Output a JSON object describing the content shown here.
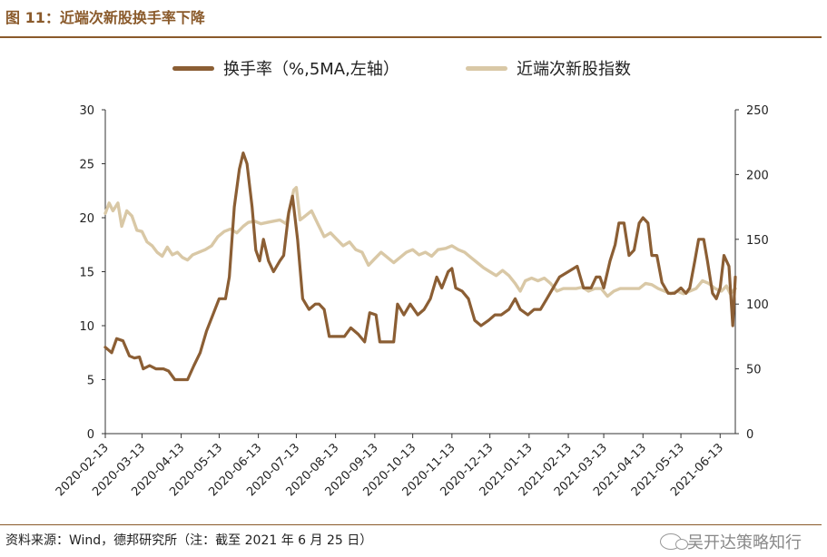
{
  "header": {
    "title": "图 11：近端次新股换手率下降"
  },
  "colors": {
    "accent": "#8a5a2b",
    "turnover": "#8b5e34",
    "index": "#d9c8a6"
  },
  "footer": {
    "source": "资料来源：Wind，德邦研究所（注：截至 2021 年 6 月 25 日）",
    "watermark": "吴开达策略知行",
    "watermark_icon": "wechat-icon"
  },
  "chart_data": {
    "type": "line",
    "title": "",
    "xlabel": "",
    "x_ticks": [
      "2020-02-13",
      "2020-03-13",
      "2020-04-13",
      "2020-05-13",
      "2020-06-13",
      "2020-07-13",
      "2020-08-13",
      "2020-09-13",
      "2020-10-13",
      "2020-11-13",
      "2020-12-13",
      "2021-01-13",
      "2021-02-13",
      "2021-03-13",
      "2021-04-13",
      "2021-05-13",
      "2021-06-13"
    ],
    "x_range": [
      "2020-02-13",
      "2021-06-25"
    ],
    "y_left": {
      "lim": [
        0,
        30
      ],
      "ticks": [
        0,
        5,
        10,
        15,
        20,
        25,
        30
      ]
    },
    "y_right": {
      "lim": [
        0,
        250
      ],
      "ticks": [
        0,
        50,
        100,
        150,
        200,
        250
      ]
    },
    "legend_position": "top-center",
    "grid": false,
    "series": [
      {
        "name": "换手率（%,5MA,左轴）",
        "axis": "left",
        "color": "#8b5e34",
        "points": [
          [
            "2020-02-13",
            8.0
          ],
          [
            "2020-02-18",
            7.5
          ],
          [
            "2020-02-22",
            8.8
          ],
          [
            "2020-02-27",
            8.6
          ],
          [
            "2020-03-03",
            7.2
          ],
          [
            "2020-03-07",
            7.0
          ],
          [
            "2020-03-11",
            7.1
          ],
          [
            "2020-03-14",
            6.0
          ],
          [
            "2020-03-19",
            6.3
          ],
          [
            "2020-03-24",
            6.0
          ],
          [
            "2020-03-30",
            6.0
          ],
          [
            "2020-04-03",
            5.8
          ],
          [
            "2020-04-08",
            5.0
          ],
          [
            "2020-04-13",
            5.0
          ],
          [
            "2020-04-18",
            5.0
          ],
          [
            "2020-04-23",
            6.3
          ],
          [
            "2020-04-28",
            7.5
          ],
          [
            "2020-05-03",
            9.5
          ],
          [
            "2020-05-08",
            11.0
          ],
          [
            "2020-05-13",
            12.5
          ],
          [
            "2020-05-18",
            12.5
          ],
          [
            "2020-05-21",
            14.5
          ],
          [
            "2020-05-25",
            21.0
          ],
          [
            "2020-05-29",
            24.5
          ],
          [
            "2020-06-01",
            26.0
          ],
          [
            "2020-06-04",
            25.0
          ],
          [
            "2020-06-08",
            21.0
          ],
          [
            "2020-06-11",
            17.0
          ],
          [
            "2020-06-14",
            16.0
          ],
          [
            "2020-06-17",
            18.0
          ],
          [
            "2020-06-21",
            16.0
          ],
          [
            "2020-06-25",
            15.0
          ],
          [
            "2020-06-30",
            16.0
          ],
          [
            "2020-07-03",
            16.5
          ],
          [
            "2020-07-07",
            20.5
          ],
          [
            "2020-07-10",
            22.0
          ],
          [
            "2020-07-14",
            18.0
          ],
          [
            "2020-07-18",
            12.5
          ],
          [
            "2020-07-23",
            11.5
          ],
          [
            "2020-07-28",
            12.0
          ],
          [
            "2020-07-31",
            12.0
          ],
          [
            "2020-08-04",
            11.5
          ],
          [
            "2020-08-08",
            9.0
          ],
          [
            "2020-08-13",
            9.0
          ],
          [
            "2020-08-20",
            9.0
          ],
          [
            "2020-08-25",
            9.8
          ],
          [
            "2020-08-31",
            9.2
          ],
          [
            "2020-09-05",
            8.5
          ],
          [
            "2020-09-09",
            11.2
          ],
          [
            "2020-09-14",
            11.0
          ],
          [
            "2020-09-17",
            8.5
          ],
          [
            "2020-09-22",
            8.5
          ],
          [
            "2020-09-28",
            8.5
          ],
          [
            "2020-10-01",
            12.0
          ],
          [
            "2020-10-06",
            11.0
          ],
          [
            "2020-10-11",
            12.0
          ],
          [
            "2020-10-17",
            11.0
          ],
          [
            "2020-10-22",
            11.5
          ],
          [
            "2020-10-27",
            12.5
          ],
          [
            "2020-11-01",
            14.5
          ],
          [
            "2020-11-05",
            13.5
          ],
          [
            "2020-11-10",
            15.0
          ],
          [
            "2020-11-13",
            15.3
          ],
          [
            "2020-11-16",
            13.5
          ],
          [
            "2020-11-21",
            13.2
          ],
          [
            "2020-11-26",
            12.5
          ],
          [
            "2020-12-01",
            10.5
          ],
          [
            "2020-12-06",
            10.0
          ],
          [
            "2020-12-12",
            10.5
          ],
          [
            "2020-12-17",
            11.0
          ],
          [
            "2020-12-22",
            11.0
          ],
          [
            "2020-12-28",
            11.5
          ],
          [
            "2021-01-02",
            12.5
          ],
          [
            "2021-01-06",
            11.5
          ],
          [
            "2021-01-12",
            11.0
          ],
          [
            "2021-01-17",
            11.5
          ],
          [
            "2021-01-22",
            11.5
          ],
          [
            "2021-01-27",
            12.5
          ],
          [
            "2021-02-01",
            13.5
          ],
          [
            "2021-02-06",
            14.5
          ],
          [
            "2021-02-13",
            15.0
          ],
          [
            "2021-02-20",
            15.5
          ],
          [
            "2021-02-25",
            13.5
          ],
          [
            "2021-03-03",
            13.5
          ],
          [
            "2021-03-07",
            14.5
          ],
          [
            "2021-03-10",
            14.5
          ],
          [
            "2021-03-13",
            13.5
          ],
          [
            "2021-03-18",
            16.0
          ],
          [
            "2021-03-22",
            17.5
          ],
          [
            "2021-03-25",
            19.5
          ],
          [
            "2021-03-29",
            19.5
          ],
          [
            "2021-04-02",
            16.5
          ],
          [
            "2021-04-06",
            17.0
          ],
          [
            "2021-04-10",
            19.5
          ],
          [
            "2021-04-13",
            20.0
          ],
          [
            "2021-04-17",
            19.5
          ],
          [
            "2021-04-20",
            16.5
          ],
          [
            "2021-04-24",
            16.5
          ],
          [
            "2021-04-28",
            14.0
          ],
          [
            "2021-05-03",
            13.0
          ],
          [
            "2021-05-08",
            13.0
          ],
          [
            "2021-05-13",
            13.5
          ],
          [
            "2021-05-17",
            13.0
          ],
          [
            "2021-05-20",
            13.5
          ],
          [
            "2021-05-24",
            16.0
          ],
          [
            "2021-05-27",
            18.0
          ],
          [
            "2021-05-31",
            18.0
          ],
          [
            "2021-06-03",
            16.0
          ],
          [
            "2021-06-07",
            13.0
          ],
          [
            "2021-06-10",
            12.5
          ],
          [
            "2021-06-13",
            13.5
          ],
          [
            "2021-06-16",
            16.5
          ],
          [
            "2021-06-20",
            15.5
          ],
          [
            "2021-06-23",
            10.0
          ],
          [
            "2021-06-25",
            14.5
          ]
        ]
      },
      {
        "name": "近端次新股指数",
        "axis": "right",
        "color": "#d9c8a6",
        "points": [
          [
            "2020-02-13",
            170
          ],
          [
            "2020-02-16",
            178
          ],
          [
            "2020-02-19",
            172
          ],
          [
            "2020-02-23",
            178
          ],
          [
            "2020-02-26",
            160
          ],
          [
            "2020-03-01",
            172
          ],
          [
            "2020-03-05",
            168
          ],
          [
            "2020-03-09",
            157
          ],
          [
            "2020-03-13",
            156
          ],
          [
            "2020-03-17",
            148
          ],
          [
            "2020-03-21",
            145
          ],
          [
            "2020-03-25",
            140
          ],
          [
            "2020-03-29",
            137
          ],
          [
            "2020-04-02",
            144
          ],
          [
            "2020-04-06",
            138
          ],
          [
            "2020-04-10",
            140
          ],
          [
            "2020-04-14",
            136
          ],
          [
            "2020-04-18",
            134
          ],
          [
            "2020-04-22",
            138
          ],
          [
            "2020-04-27",
            140
          ],
          [
            "2020-05-02",
            142
          ],
          [
            "2020-05-07",
            145
          ],
          [
            "2020-05-12",
            152
          ],
          [
            "2020-05-17",
            156
          ],
          [
            "2020-05-22",
            158
          ],
          [
            "2020-05-27",
            155
          ],
          [
            "2020-06-01",
            160
          ],
          [
            "2020-06-05",
            163
          ],
          [
            "2020-06-10",
            164
          ],
          [
            "2020-06-15",
            162
          ],
          [
            "2020-06-20",
            163
          ],
          [
            "2020-06-25",
            164
          ],
          [
            "2020-06-30",
            165
          ],
          [
            "2020-07-05",
            162
          ],
          [
            "2020-07-08",
            175
          ],
          [
            "2020-07-11",
            188
          ],
          [
            "2020-07-13",
            190
          ],
          [
            "2020-07-16",
            165
          ],
          [
            "2020-07-20",
            168
          ],
          [
            "2020-07-25",
            172
          ],
          [
            "2020-07-30",
            162
          ],
          [
            "2020-08-04",
            152
          ],
          [
            "2020-08-09",
            155
          ],
          [
            "2020-08-14",
            150
          ],
          [
            "2020-08-19",
            145
          ],
          [
            "2020-08-24",
            148
          ],
          [
            "2020-08-29",
            142
          ],
          [
            "2020-09-03",
            140
          ],
          [
            "2020-09-08",
            130
          ],
          [
            "2020-09-13",
            135
          ],
          [
            "2020-09-18",
            140
          ],
          [
            "2020-09-23",
            136
          ],
          [
            "2020-09-28",
            132
          ],
          [
            "2020-10-03",
            136
          ],
          [
            "2020-10-08",
            140
          ],
          [
            "2020-10-13",
            142
          ],
          [
            "2020-10-18",
            138
          ],
          [
            "2020-10-23",
            140
          ],
          [
            "2020-10-28",
            137
          ],
          [
            "2020-11-02",
            142
          ],
          [
            "2020-11-08",
            143
          ],
          [
            "2020-11-13",
            145
          ],
          [
            "2020-11-18",
            142
          ],
          [
            "2020-11-23",
            140
          ],
          [
            "2020-11-28",
            136
          ],
          [
            "2020-12-03",
            132
          ],
          [
            "2020-12-08",
            128
          ],
          [
            "2020-12-13",
            125
          ],
          [
            "2020-12-18",
            122
          ],
          [
            "2020-12-23",
            126
          ],
          [
            "2020-12-28",
            122
          ],
          [
            "2021-01-02",
            116
          ],
          [
            "2021-01-06",
            110
          ],
          [
            "2021-01-10",
            118
          ],
          [
            "2021-01-15",
            120
          ],
          [
            "2021-01-20",
            118
          ],
          [
            "2021-01-25",
            120
          ],
          [
            "2021-01-30",
            116
          ],
          [
            "2021-02-04",
            110
          ],
          [
            "2021-02-09",
            112
          ],
          [
            "2021-02-14",
            112
          ],
          [
            "2021-02-19",
            112
          ],
          [
            "2021-02-24",
            113
          ],
          [
            "2021-03-01",
            110
          ],
          [
            "2021-03-06",
            112
          ],
          [
            "2021-03-11",
            112
          ],
          [
            "2021-03-16",
            106
          ],
          [
            "2021-03-21",
            110
          ],
          [
            "2021-03-26",
            112
          ],
          [
            "2021-03-31",
            112
          ],
          [
            "2021-04-05",
            112
          ],
          [
            "2021-04-10",
            112
          ],
          [
            "2021-04-15",
            116
          ],
          [
            "2021-04-20",
            115
          ],
          [
            "2021-04-25",
            112
          ],
          [
            "2021-04-30",
            110
          ],
          [
            "2021-05-05",
            108
          ],
          [
            "2021-05-10",
            110
          ],
          [
            "2021-05-15",
            108
          ],
          [
            "2021-05-20",
            110
          ],
          [
            "2021-05-25",
            112
          ],
          [
            "2021-05-30",
            118
          ],
          [
            "2021-06-04",
            116
          ],
          [
            "2021-06-09",
            112
          ],
          [
            "2021-06-14",
            110
          ],
          [
            "2021-06-18",
            114
          ],
          [
            "2021-06-21",
            108
          ],
          [
            "2021-06-25",
            112
          ]
        ]
      }
    ]
  }
}
